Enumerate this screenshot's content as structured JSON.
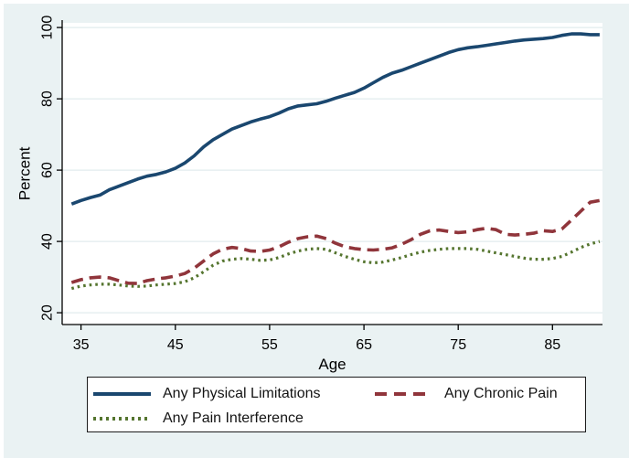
{
  "figure": {
    "background": "#eaf2f3",
    "plot_background": "#ffffff",
    "grid_color": "#e2ecee",
    "axis_color": "#000000",
    "text_color": "#000000",
    "legend_border_color": "#1c1c1c",
    "legend_background": "#ffffff"
  },
  "chart_data": {
    "type": "line",
    "title": "",
    "xlabel": "Age",
    "ylabel": "Percent",
    "xlim": [
      33,
      90.3
    ],
    "ylim": [
      16.7,
      101.3
    ],
    "xticks": [
      35,
      45,
      55,
      65,
      75,
      85
    ],
    "yticks": [
      20,
      40,
      60,
      80,
      100
    ],
    "grid": "horizontal",
    "legend_position": "bottom",
    "x": [
      34,
      35,
      36,
      37,
      38,
      39,
      40,
      41,
      42,
      43,
      44,
      45,
      46,
      47,
      48,
      49,
      50,
      51,
      52,
      53,
      54,
      55,
      56,
      57,
      58,
      59,
      60,
      61,
      62,
      63,
      64,
      65,
      66,
      67,
      68,
      69,
      70,
      71,
      72,
      73,
      74,
      75,
      76,
      77,
      78,
      79,
      80,
      81,
      82,
      83,
      84,
      85,
      86,
      87,
      88,
      89,
      90
    ],
    "series": [
      {
        "name": "Any Physical Limitations",
        "color": "#1a476f",
        "style": "solid",
        "values": [
          50.5,
          51.5,
          52.3,
          53.0,
          54.5,
          55.5,
          56.5,
          57.5,
          58.3,
          58.8,
          59.5,
          60.5,
          62.0,
          64.0,
          66.5,
          68.5,
          70.0,
          71.5,
          72.5,
          73.5,
          74.3,
          75.0,
          76.0,
          77.2,
          78.0,
          78.3,
          78.6,
          79.3,
          80.2,
          81.0,
          81.8,
          83.0,
          84.5,
          86.0,
          87.2,
          88.0,
          89.0,
          90.0,
          91.0,
          92.0,
          93.0,
          93.8,
          94.3,
          94.6,
          95.0,
          95.4,
          95.8,
          96.2,
          96.5,
          96.7,
          96.9,
          97.2,
          97.8,
          98.2,
          98.2,
          98.0,
          98.0
        ]
      },
      {
        "name": "Any Chronic Pain",
        "color": "#90353b",
        "style": "dashed",
        "values": [
          28.5,
          29.3,
          29.8,
          30.0,
          29.8,
          29.0,
          28.3,
          28.2,
          29.0,
          29.5,
          29.8,
          30.3,
          31.0,
          32.5,
          34.5,
          36.5,
          37.8,
          38.3,
          38.0,
          37.3,
          37.2,
          37.6,
          38.5,
          39.8,
          40.8,
          41.3,
          41.5,
          40.8,
          39.5,
          38.5,
          38.0,
          37.7,
          37.6,
          37.8,
          38.2,
          39.2,
          40.5,
          42.0,
          43.0,
          43.2,
          42.8,
          42.5,
          42.7,
          43.3,
          43.7,
          43.3,
          42.0,
          41.8,
          42.0,
          42.3,
          43.0,
          42.8,
          43.5,
          46.0,
          48.5,
          51.0,
          51.5
        ]
      },
      {
        "name": "Any Pain Interference",
        "color": "#55752f",
        "style": "dotted",
        "values": [
          26.8,
          27.5,
          27.8,
          28.0,
          28.0,
          27.8,
          27.5,
          27.4,
          27.5,
          27.8,
          28.0,
          28.2,
          28.7,
          29.8,
          31.5,
          33.3,
          34.5,
          35.0,
          35.2,
          35.0,
          34.7,
          34.8,
          35.5,
          36.5,
          37.3,
          37.8,
          38.0,
          37.8,
          36.8,
          35.8,
          35.0,
          34.3,
          34.0,
          34.2,
          34.8,
          35.5,
          36.3,
          37.0,
          37.5,
          37.8,
          38.0,
          38.0,
          38.0,
          37.8,
          37.3,
          36.8,
          36.3,
          35.8,
          35.3,
          35.0,
          35.0,
          35.2,
          35.8,
          37.0,
          38.3,
          39.3,
          40.0
        ]
      }
    ]
  }
}
